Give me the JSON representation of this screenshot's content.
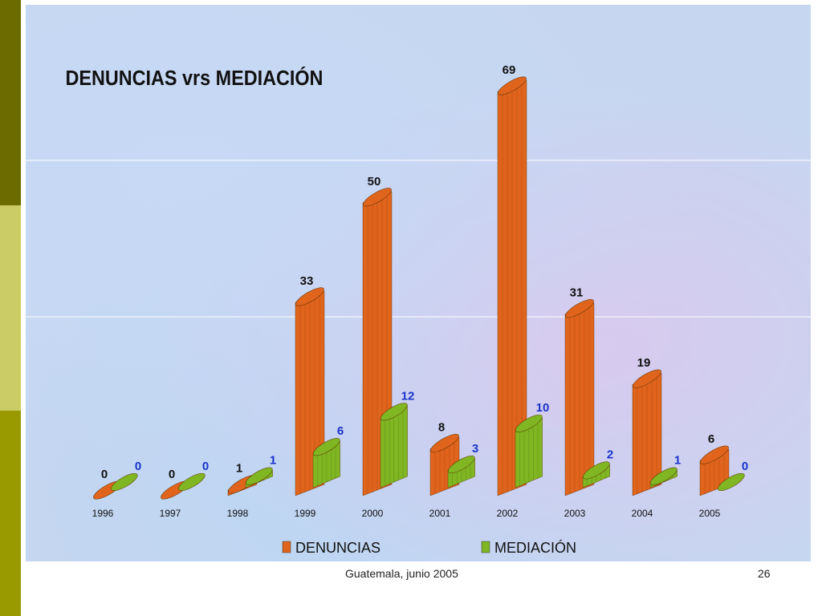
{
  "footer": {
    "text": "Guatemala, junio 2005",
    "page": "26"
  },
  "colors": {
    "denuncias": "#e0641c",
    "mediacion": "#7fb622",
    "denuncias_label": "#111111",
    "mediacion_label": "#1a33cc"
  },
  "chart_data": {
    "type": "bar",
    "title": "DENUNCIAS vrs MEDIACIÓN",
    "categories": [
      "1996",
      "1997",
      "1998",
      "1999",
      "2000",
      "2001",
      "2002",
      "2003",
      "2004",
      "2005"
    ],
    "series": [
      {
        "name": "DENUNCIAS",
        "values": [
          0,
          0,
          1,
          33,
          50,
          8,
          69,
          31,
          19,
          6
        ]
      },
      {
        "name": "MEDIACIÓN",
        "values": [
          0,
          0,
          1,
          6,
          12,
          3,
          10,
          2,
          1,
          0
        ]
      }
    ],
    "ylim": [
      0,
      69
    ],
    "grid": true,
    "legend": "bottom"
  }
}
